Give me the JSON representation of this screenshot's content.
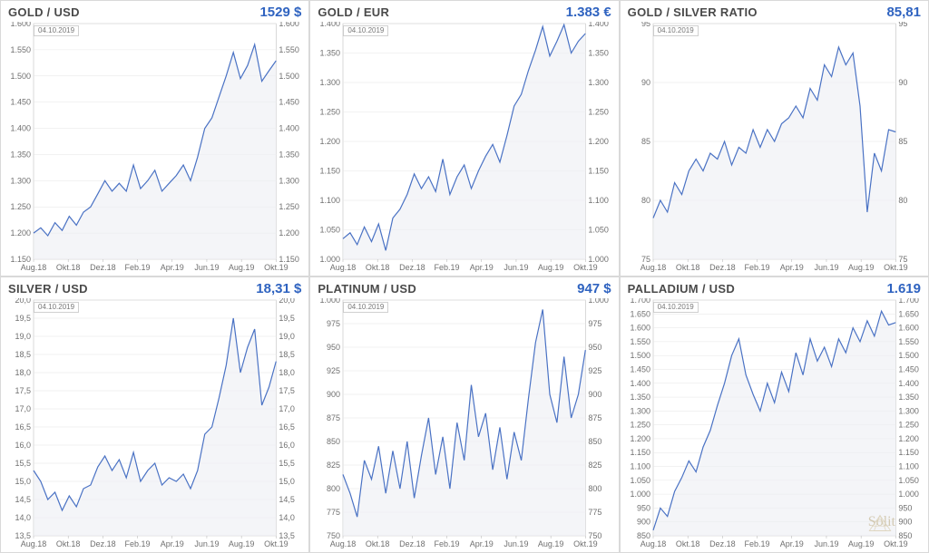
{
  "global": {
    "date_tag": "04.10.2019",
    "line_color": "#4a72c4",
    "area_color": "#eceff4",
    "grid_color": "#e5e5e5",
    "axis_text_color": "#707070",
    "frame_color": "#c0c0c0",
    "label_fontsize": 9,
    "title_fontsize": 13,
    "value_fontsize": 15,
    "value_color": "#2f63c0",
    "title_color": "#4a4a4a",
    "background_color": "#ffffff",
    "x_categories": [
      "Aug.18",
      "Okt.18",
      "Dez.18",
      "Feb.19",
      "Apr.19",
      "Jun.19",
      "Aug.19",
      "Okt.19"
    ],
    "logo_text": "Solit"
  },
  "panels": [
    {
      "id": "gold-usd",
      "title": "GOLD / USD",
      "value": "1529 $",
      "type": "area-line",
      "ylim": [
        1150,
        1600
      ],
      "ytick_step": 50,
      "series": [
        1200,
        1210,
        1195,
        1220,
        1205,
        1232,
        1215,
        1240,
        1250,
        1275,
        1300,
        1280,
        1295,
        1280,
        1330,
        1285,
        1300,
        1320,
        1280,
        1295,
        1310,
        1330,
        1300,
        1345,
        1400,
        1420,
        1460,
        1500,
        1545,
        1495,
        1520,
        1560,
        1490,
        1510,
        1529
      ]
    },
    {
      "id": "gold-eur",
      "title": "GOLD / EUR",
      "value": "1.383 €",
      "type": "area-line",
      "ylim": [
        1000,
        1400
      ],
      "ytick_step": 50,
      "series": [
        1035,
        1045,
        1025,
        1055,
        1030,
        1060,
        1015,
        1070,
        1085,
        1110,
        1145,
        1120,
        1140,
        1115,
        1170,
        1110,
        1140,
        1160,
        1120,
        1150,
        1175,
        1195,
        1165,
        1210,
        1260,
        1280,
        1320,
        1355,
        1395,
        1345,
        1370,
        1398,
        1350,
        1370,
        1383
      ]
    },
    {
      "id": "gold-silver-ratio",
      "title": "GOLD / SILVER RATIO",
      "value": "85,81",
      "type": "area-line",
      "ylim": [
        75,
        95
      ],
      "ytick_step": 5,
      "series": [
        78.5,
        80,
        79,
        81.5,
        80.5,
        82.5,
        83.5,
        82.5,
        84,
        83.5,
        85,
        83,
        84.5,
        84,
        86,
        84.5,
        86,
        85,
        86.5,
        87,
        88,
        87,
        89.5,
        88.5,
        91.5,
        90.5,
        93,
        91.5,
        92.5,
        88,
        79,
        84,
        82.5,
        86,
        85.81
      ]
    },
    {
      "id": "silver-usd",
      "title": "SILVER / USD",
      "value": "18,31 $",
      "type": "area-line",
      "ylim": [
        13.5,
        20.0
      ],
      "ytick_step": 0.5,
      "series": [
        15.3,
        15.0,
        14.5,
        14.7,
        14.2,
        14.6,
        14.3,
        14.8,
        14.9,
        15.4,
        15.7,
        15.3,
        15.6,
        15.1,
        15.8,
        15.0,
        15.3,
        15.5,
        14.9,
        15.1,
        15.0,
        15.2,
        14.8,
        15.3,
        16.3,
        16.5,
        17.3,
        18.2,
        19.5,
        18.0,
        18.7,
        19.2,
        17.1,
        17.6,
        18.31
      ]
    },
    {
      "id": "platinum-usd",
      "title": "PLATINUM / USD",
      "value": "947 $",
      "type": "area-line",
      "ylim": [
        750,
        1000
      ],
      "ytick_step": 25,
      "series": [
        815,
        795,
        770,
        830,
        810,
        845,
        795,
        840,
        800,
        850,
        790,
        835,
        875,
        815,
        855,
        800,
        870,
        830,
        910,
        855,
        880,
        820,
        865,
        810,
        860,
        830,
        895,
        955,
        990,
        900,
        870,
        940,
        875,
        900,
        947
      ]
    },
    {
      "id": "palladium-usd",
      "title": "PALLADIUM / USD",
      "value": "1.619",
      "type": "area-line",
      "ylim": [
        850,
        1700
      ],
      "ytick_step": 50,
      "show_logo": true,
      "series": [
        870,
        950,
        920,
        1010,
        1060,
        1120,
        1080,
        1170,
        1230,
        1320,
        1400,
        1500,
        1560,
        1430,
        1360,
        1300,
        1400,
        1330,
        1440,
        1370,
        1510,
        1430,
        1560,
        1480,
        1530,
        1460,
        1560,
        1510,
        1600,
        1550,
        1625,
        1570,
        1660,
        1610,
        1619
      ]
    }
  ]
}
